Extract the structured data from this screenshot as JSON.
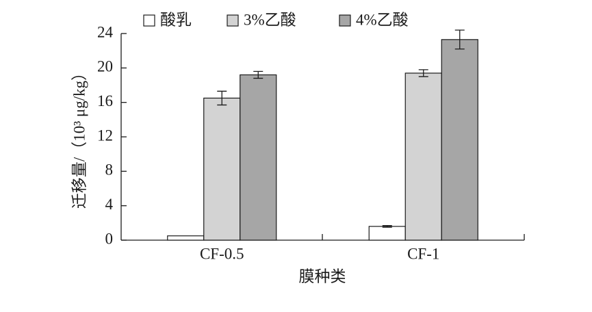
{
  "chart_data": {
    "type": "bar",
    "x_label": "膜种类",
    "y_label": "迁移量/（10³ μg/kg）",
    "categories": [
      "CF-0.5",
      "CF-1"
    ],
    "series": [
      {
        "name": "酸乳",
        "color": "#ffffff",
        "values": [
          0.5,
          1.6
        ],
        "errors": [
          null,
          0.1
        ]
      },
      {
        "name": "3%乙酸",
        "color": "#d3d3d3",
        "values": [
          16.5,
          19.4
        ],
        "errors": [
          0.8,
          0.4
        ]
      },
      {
        "name": "4%乙酸",
        "color": "#a6a6a6",
        "values": [
          19.2,
          23.3
        ],
        "errors": [
          0.4,
          1.1
        ]
      }
    ],
    "ylim": [
      0,
      24
    ],
    "yticks": [
      0,
      4,
      8,
      12,
      16,
      20,
      24
    ],
    "legend": "top"
  }
}
